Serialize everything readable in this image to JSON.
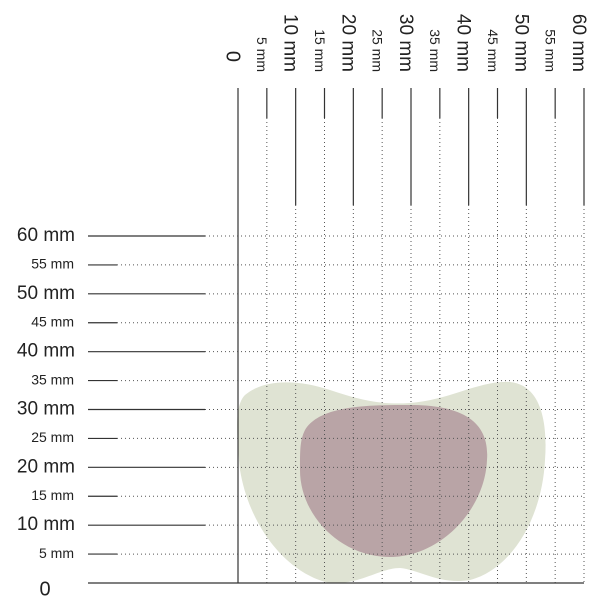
{
  "x_axis": {
    "labels": [
      "0",
      "5 mm",
      "10 mm",
      "15 mm",
      "20 mm",
      "25 mm",
      "30 mm",
      "35 mm",
      "40 mm",
      "45 mm",
      "50 mm",
      "55 mm",
      "60 mm"
    ]
  },
  "y_axis": {
    "labels": [
      "0",
      "5 mm",
      "10 mm",
      "15 mm",
      "20 mm",
      "25 mm",
      "30 mm",
      "35 mm",
      "40 mm",
      "45 mm",
      "50 mm",
      "55 mm",
      "60 mm"
    ]
  }
}
